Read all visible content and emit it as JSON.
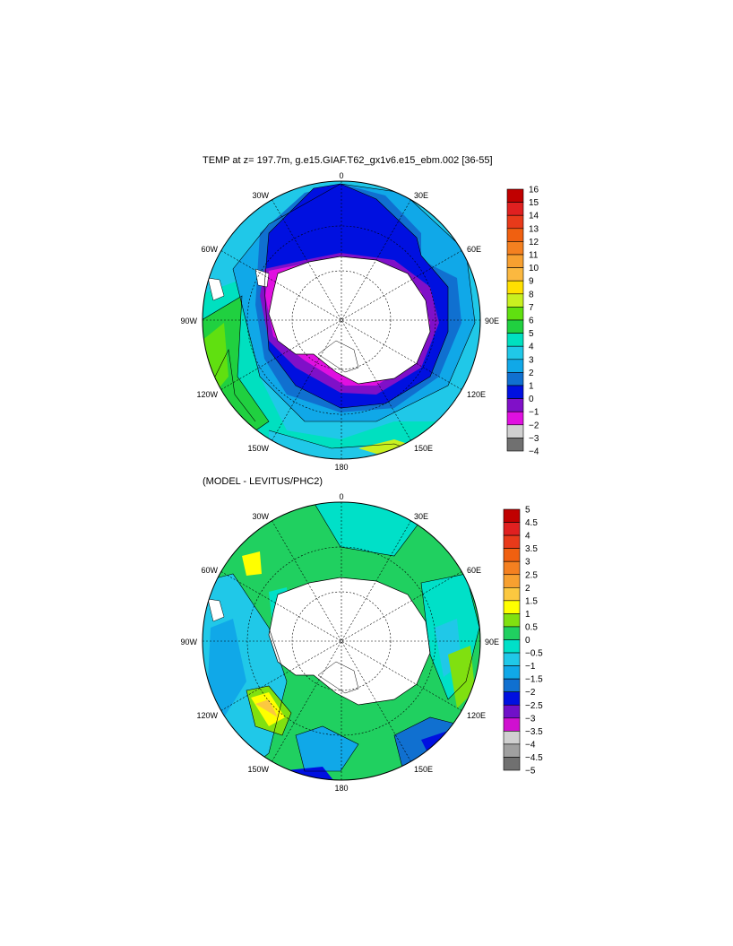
{
  "maps": [
    {
      "title": "TEMP at z= 197.7m, g.e15.GIAF.T62_gx1v6.e15_ebm.002 [36-55]",
      "lon_labels": [
        "0",
        "30E",
        "60E",
        "90E",
        "120E",
        "150E",
        "180",
        "150W",
        "120W",
        "90W",
        "60W",
        "30W"
      ],
      "colorbar": {
        "levels": [
          "16",
          "15",
          "14",
          "13",
          "12",
          "11",
          "10",
          "9",
          "8",
          "7",
          "6",
          "5",
          "4",
          "3",
          "2",
          "1",
          "0",
          "−1",
          "−2",
          "−3",
          "−4"
        ],
        "colors": [
          "#c00000",
          "#e02020",
          "#e83a1a",
          "#f06010",
          "#f48020",
          "#f7a030",
          "#fbb840",
          "#ffe000",
          "#c8f020",
          "#60e010",
          "#20d040",
          "#00e0c0",
          "#20c8e8",
          "#10a8e8",
          "#1070d0",
          "#0010e0",
          "#8010c8",
          "#e010e0",
          "#d0d0d0",
          "#707070"
        ]
      }
    },
    {
      "title": "(MODEL - LEVITUS/PHC2)",
      "lon_labels": [
        "0",
        "30E",
        "60E",
        "90E",
        "120E",
        "150E",
        "180",
        "150W",
        "120W",
        "90W",
        "60W",
        "30W"
      ],
      "colorbar": {
        "levels": [
          "5",
          "4.5",
          "4",
          "3.5",
          "3",
          "2.5",
          "2",
          "1.5",
          "1",
          "0.5",
          "0",
          "−0.5",
          "−1",
          "−1.5",
          "−2",
          "−2.5",
          "−3",
          "−3.5",
          "−4",
          "−4.5",
          "−5"
        ],
        "colors": [
          "#c00000",
          "#e02020",
          "#e83a1a",
          "#f06010",
          "#f48020",
          "#f7a030",
          "#fbc840",
          "#ffff00",
          "#80e010",
          "#20d060",
          "#00e0c8",
          "#20c8e8",
          "#10a8e8",
          "#1070d0",
          "#0010e0",
          "#7010c8",
          "#d010d0",
          "#d0d0d0",
          "#a0a0a0",
          "#707070"
        ]
      }
    }
  ]
}
